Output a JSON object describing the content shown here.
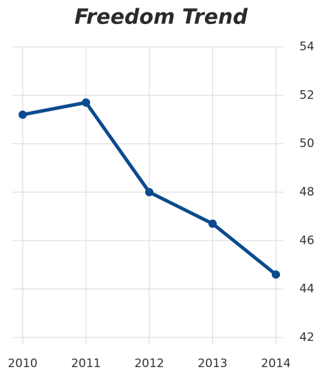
{
  "chart_data": {
    "type": "line",
    "title": "Freedom Trend",
    "categories": [
      "2010",
      "2011",
      "2012",
      "2013",
      "2014"
    ],
    "values": [
      51.2,
      51.7,
      48.0,
      46.7,
      44.6
    ],
    "color": "#0b4a8f",
    "ylim": [
      42,
      54
    ],
    "yticks": [
      42,
      44,
      46,
      48,
      50,
      52,
      54
    ],
    "grid": true,
    "y_axis_side": "right"
  }
}
